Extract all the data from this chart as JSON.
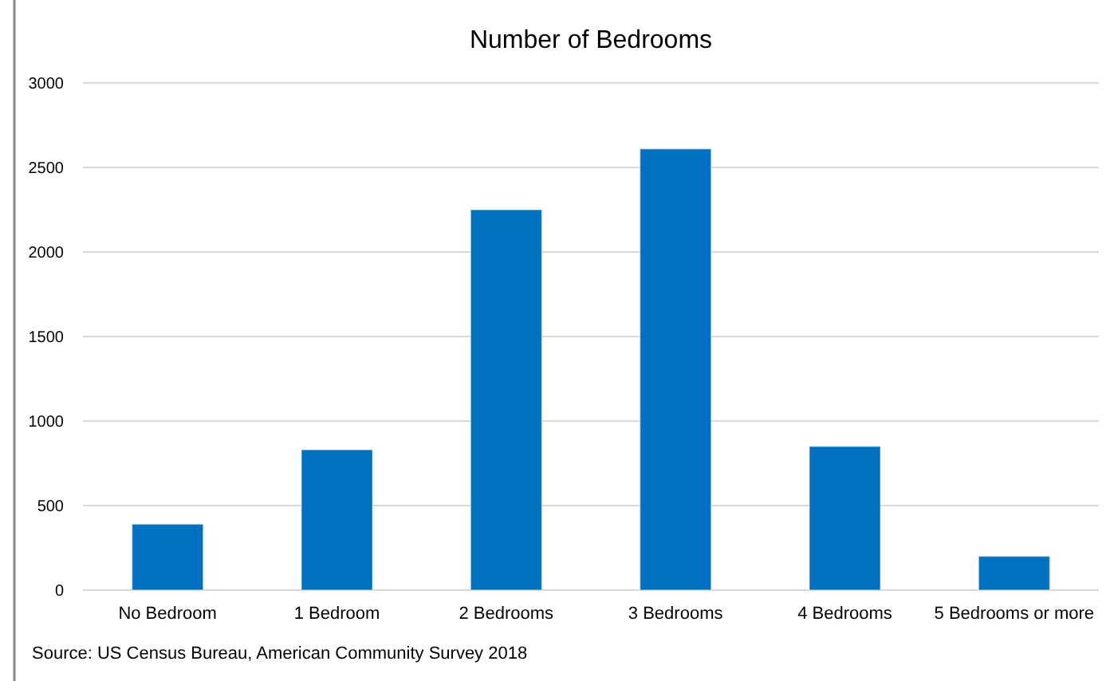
{
  "chart_data": {
    "type": "bar",
    "title": "Number of Bedrooms",
    "categories": [
      "No Bedroom",
      "1 Bedroom",
      "2 Bedrooms",
      "3 Bedrooms",
      "4 Bedrooms",
      "5 Bedrooms or more"
    ],
    "values": [
      390,
      830,
      2250,
      2610,
      850,
      200
    ],
    "color": "#0070c0",
    "ylim": [
      0,
      3000
    ],
    "yticks": [
      0,
      500,
      1000,
      1500,
      2000,
      2500,
      3000
    ],
    "grid": "y",
    "annotations": [
      "Source: US Census Bureau, American Community Survey 2018"
    ]
  }
}
